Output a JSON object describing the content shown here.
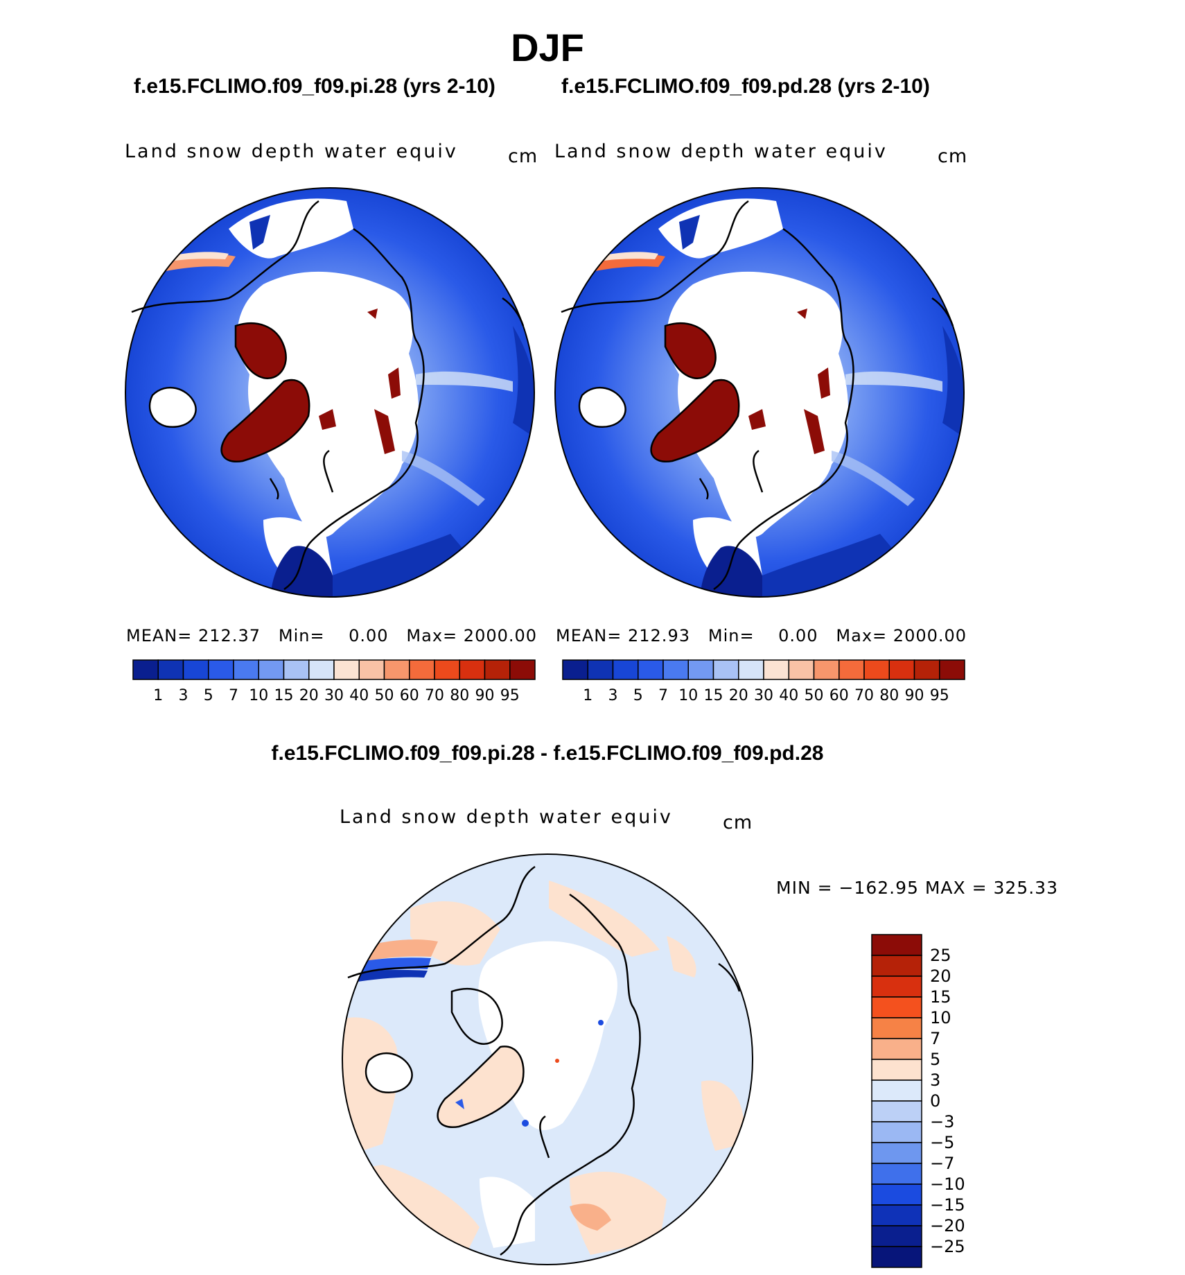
{
  "page_title": "DJF",
  "panels": [
    {
      "case_title": "f.e15.FCLIMO.f09_f09.pi.28 (yrs 2-10)",
      "variable": "Land snow depth water equiv",
      "units": "cm",
      "stats": {
        "mean_label": "MEAN=",
        "mean": "212.37",
        "min_label": "Min=",
        "min": "0.00",
        "max_label": "Max=",
        "max": "2000.00"
      }
    },
    {
      "case_title": "f.e15.FCLIMO.f09_f09.pd.28 (yrs 2-10)",
      "variable": "Land snow depth water equiv",
      "units": "cm",
      "stats": {
        "mean_label": "MEAN=",
        "mean": "212.93",
        "min_label": "Min=",
        "min": "0.00",
        "max_label": "Max=",
        "max": "2000.00"
      }
    }
  ],
  "abs_colorbar": {
    "labels": [
      "1",
      "3",
      "5",
      "7",
      "10",
      "15",
      "20",
      "30",
      "40",
      "50",
      "60",
      "70",
      "80",
      "90",
      "95"
    ],
    "colors": [
      "#0a1f8f",
      "#0f33b4",
      "#1846d6",
      "#2a5ae8",
      "#4a7af0",
      "#7399f2",
      "#a9c2f5",
      "#d6e4f8",
      "#fbe3d3",
      "#f9c2a6",
      "#f7966c",
      "#f46b3b",
      "#ec4a1c",
      "#d8300f",
      "#b52208",
      "#8c0c07"
    ]
  },
  "difference": {
    "title": "f.e15.FCLIMO.f09_f09.pi.28 - f.e15.FCLIMO.f09_f09.pd.28",
    "variable": "Land snow depth water equiv",
    "units": "cm",
    "minmax": "MIN = −162.95 MAX = 325.33",
    "colorbar": {
      "labels": [
        "25",
        "20",
        "15",
        "10",
        "7",
        "5",
        "3",
        "0",
        "−3",
        "−5",
        "−7",
        "−10",
        "−15",
        "−20",
        "−25"
      ],
      "colors": [
        "#8c0c07",
        "#b52208",
        "#d8300f",
        "#f4511e",
        "#f68246",
        "#f9b08a",
        "#fde2cf",
        "#dce9fa",
        "#bcd0f6",
        "#9bb8f3",
        "#6e97ef",
        "#3f70eb",
        "#1b4be0",
        "#0f32b8",
        "#0a1f8f",
        "#07157a"
      ]
    }
  }
}
